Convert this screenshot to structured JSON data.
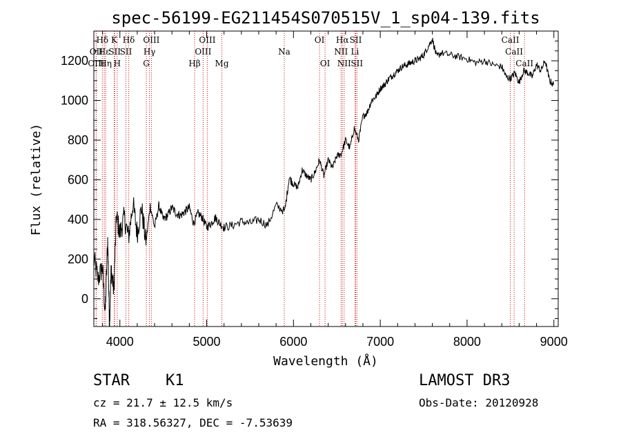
{
  "chart_data": {
    "type": "line",
    "title": "spec-56199-EG211454S070515V_1_sp04-139.fits",
    "xlabel": "Wavelength (Å)",
    "ylabel": "Flux (relative)",
    "xlim": [
      3700,
      9050
    ],
    "ylim": [
      -140,
      1350
    ],
    "xticks": [
      4000,
      5000,
      6000,
      7000,
      8000,
      9000
    ],
    "xtick_labels": [
      "4000",
      "5000",
      "6000",
      "7000",
      "8000",
      "9000"
    ],
    "yticks": [
      0,
      200,
      400,
      600,
      800,
      1000,
      1200
    ],
    "ytick_labels": [
      "0",
      "200",
      "400",
      "600",
      "800",
      "1000",
      "1200"
    ],
    "grid": false,
    "series": [
      {
        "name": "spectrum",
        "x": [
          3700,
          3750,
          3800,
          3830,
          3860,
          3880,
          3900,
          3930,
          3960,
          4000,
          4050,
          4100,
          4150,
          4200,
          4250,
          4300,
          4350,
          4400,
          4450,
          4500,
          4550,
          4600,
          4650,
          4700,
          4750,
          4800,
          4850,
          4900,
          4950,
          5000,
          5050,
          5100,
          5150,
          5200,
          5300,
          5400,
          5500,
          5600,
          5700,
          5800,
          5900,
          5950,
          6000,
          6050,
          6100,
          6150,
          6200,
          6250,
          6300,
          6350,
          6400,
          6450,
          6500,
          6550,
          6600,
          6650,
          6700,
          6750,
          6800,
          6850,
          6900,
          6950,
          7000,
          7050,
          7100,
          7150,
          7200,
          7250,
          7300,
          7350,
          7400,
          7450,
          7500,
          7550,
          7600,
          7650,
          7700,
          7800,
          7900,
          8000,
          8100,
          8200,
          8300,
          8400,
          8450,
          8500,
          8550,
          8600,
          8650,
          8700,
          8750,
          8800,
          8850,
          8900,
          8950,
          9000
        ],
        "y": [
          200,
          100,
          160,
          -80,
          300,
          -120,
          150,
          40,
          420,
          330,
          410,
          310,
          480,
          330,
          460,
          280,
          470,
          360,
          470,
          400,
          420,
          460,
          430,
          420,
          440,
          460,
          380,
          430,
          410,
          360,
          380,
          410,
          380,
          360,
          370,
          390,
          380,
          400,
          370,
          470,
          440,
          610,
          580,
          560,
          650,
          620,
          600,
          640,
          700,
          620,
          700,
          660,
          720,
          730,
          800,
          760,
          860,
          800,
          920,
          940,
          1000,
          1020,
          1060,
          1080,
          1110,
          1130,
          1150,
          1170,
          1180,
          1190,
          1200,
          1210,
          1230,
          1270,
          1310,
          1220,
          1240,
          1230,
          1220,
          1210,
          1190,
          1200,
          1180,
          1170,
          1120,
          1110,
          1140,
          1090,
          1150,
          1140,
          1120,
          1180,
          1150,
          1200,
          1100,
          1080
        ]
      }
    ],
    "lines": [
      {
        "label": "Hδ",
        "x": 3798,
        "row": 0
      },
      {
        "label": "OII",
        "x": 3727,
        "row": 1
      },
      {
        "label": "OIII",
        "x": 3727,
        "row": 2
      },
      {
        "label": "Hε",
        "x": 3820,
        "row": 1
      },
      {
        "label": "Hη",
        "x": 3836,
        "row": 2
      },
      {
        "label": "K",
        "x": 3934,
        "row": 0
      },
      {
        "label": "SII",
        "x": 3940,
        "row": 1
      },
      {
        "label": "H",
        "x": 3969,
        "row": 2
      },
      {
        "label": "Hδ",
        "x": 4102,
        "row": 0
      },
      {
        "label": "SII",
        "x": 4070,
        "row": 1
      },
      {
        "label": "OIII",
        "x": 4363,
        "row": 0
      },
      {
        "label": "Hγ",
        "x": 4341,
        "row": 1
      },
      {
        "label": "G",
        "x": 4305,
        "row": 2
      },
      {
        "label": "Hβ",
        "x": 4861,
        "row": 2
      },
      {
        "label": "OIII",
        "x": 5007,
        "row": 0
      },
      {
        "label": "OIII",
        "x": 4959,
        "row": 1
      },
      {
        "label": "Mg",
        "x": 5175,
        "row": 2
      },
      {
        "label": "Na",
        "x": 5894,
        "row": 1
      },
      {
        "label": "OI",
        "x": 6300,
        "row": 0
      },
      {
        "label": "OI",
        "x": 6364,
        "row": 2
      },
      {
        "label": "Hα",
        "x": 6563,
        "row": 0
      },
      {
        "label": "SII",
        "x": 6717,
        "row": 0
      },
      {
        "label": "NII",
        "x": 6548,
        "row": 1
      },
      {
        "label": "Li",
        "x": 6708,
        "row": 1
      },
      {
        "label": "NII",
        "x": 6584,
        "row": 2
      },
      {
        "label": "SII",
        "x": 6731,
        "row": 2
      },
      {
        "label": "CaII",
        "x": 8498,
        "row": 0
      },
      {
        "label": "CaII",
        "x": 8542,
        "row": 1
      },
      {
        "label": "CaII",
        "x": 8662,
        "row": 2
      }
    ]
  },
  "info": {
    "classification": "STAR",
    "subclass": "K1",
    "survey": "LAMOST DR3",
    "cz": "cz = 21.7 ± 12.5 km/s",
    "obs_date": "Obs-Date: 20120928",
    "coords": "RA = 318.56327, DEC =  -7.53639"
  }
}
